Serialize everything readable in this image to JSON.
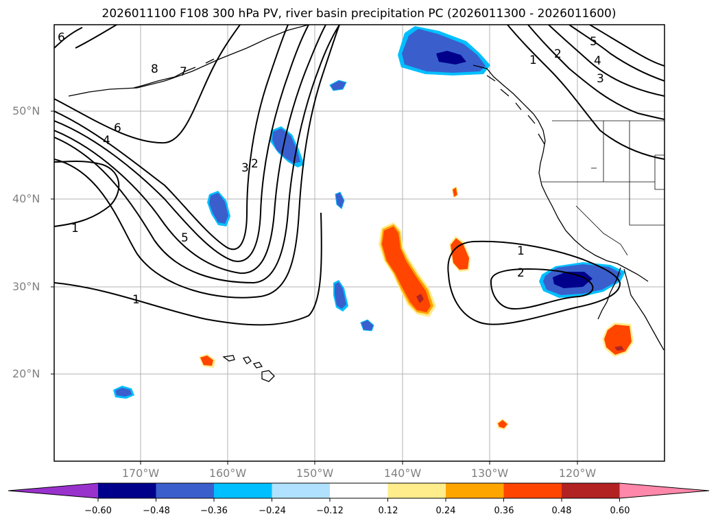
{
  "title": "2026011100 F108 300 hPa PV, river basin precipitation PC (2026011300 - 2026011600)",
  "map": {
    "lat_labels": [
      "50°N",
      "40°N",
      "30°N",
      "20°N"
    ],
    "lon_labels": [
      "170°W",
      "160°W",
      "150°W",
      "140°W",
      "130°W",
      "120°W"
    ],
    "contour_labels": {
      "pv_6a": "6",
      "pv_8": "8",
      "pv_7": "7",
      "pv_6b": "6",
      "pv_4a": "4",
      "pv_2a": "2",
      "pv_3a": "3",
      "pv_5a": "5",
      "pv_1a": "1",
      "pv_1b": "1",
      "pv_1c": "1",
      "pv_2b": "2",
      "pv_1d": "1",
      "pv_2c": "2",
      "pv_5b": "5",
      "pv_4b": "4",
      "pv_3b": "3"
    }
  },
  "colorbar": {
    "ticks": [
      "−0.60",
      "−0.48",
      "−0.36",
      "−0.24",
      "−0.12",
      "0.12",
      "0.24",
      "0.36",
      "0.48",
      "0.60"
    ],
    "colors": [
      "#9932cc",
      "#00008b",
      "#3a5fcd",
      "#00bfff",
      "#b0e2ff",
      "#ffffff",
      "#ffec8b",
      "#ffa500",
      "#ff4500",
      "#b22222",
      "#ff88aa"
    ]
  },
  "colors": {
    "grid": "#b0b0b0",
    "contour": "#000000",
    "coast": "#000000"
  }
}
